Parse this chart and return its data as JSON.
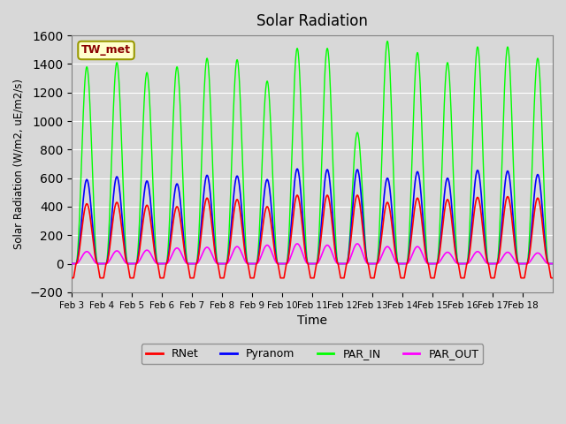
{
  "title": "Solar Radiation",
  "ylabel": "Solar Radiation (W/m2, uE/m2/s)",
  "xlabel": "Time",
  "ylim": [
    -200,
    1600
  ],
  "yticks": [
    -200,
    0,
    200,
    400,
    600,
    800,
    1000,
    1200,
    1400,
    1600
  ],
  "annotation": "TW_met",
  "legend_entries": [
    "RNet",
    "Pyranom",
    "PAR_IN",
    "PAR_OUT"
  ],
  "line_colors": [
    "red",
    "blue",
    "lime",
    "magenta"
  ],
  "bg_color": "#d8d8d8",
  "n_days": 16,
  "xtick_labels": [
    "Feb 3",
    "Feb 4",
    "Feb 5",
    "Feb 6",
    "Feb 7",
    "Feb 8",
    "Feb 9",
    "Feb 10",
    "Feb 11",
    "Feb 12",
    "Feb 13",
    "Feb 14",
    "Feb 15",
    "Feb 16",
    "Feb 17",
    "Feb 18"
  ],
  "par_peaks": [
    1380,
    1410,
    1340,
    1380,
    1440,
    1430,
    1280,
    1510,
    1510,
    920,
    1560,
    1480,
    1410,
    1520,
    1520,
    1440
  ],
  "pyranom_peaks": [
    590,
    610,
    580,
    560,
    620,
    615,
    590,
    665,
    660,
    660,
    600,
    645,
    600,
    655,
    650,
    625
  ],
  "rnet_peaks": [
    420,
    430,
    410,
    400,
    460,
    450,
    400,
    480,
    480,
    480,
    430,
    460,
    450,
    465,
    470,
    460
  ],
  "par_out_peaks": [
    85,
    90,
    95,
    110,
    115,
    120,
    130,
    140,
    130,
    140,
    120,
    120,
    80,
    85,
    80,
    75
  ]
}
